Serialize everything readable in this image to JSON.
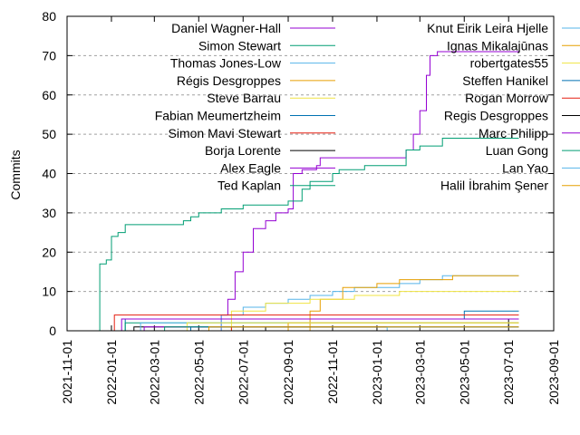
{
  "chart_data": {
    "type": "line",
    "ylabel": "Commits",
    "ylim": [
      0,
      80
    ],
    "yticks": [
      0,
      10,
      20,
      30,
      40,
      50,
      60,
      70,
      80
    ],
    "xlim": [
      "2021-11-01",
      "2023-09-01"
    ],
    "xticks": [
      "2021-11-01",
      "2022-01-01",
      "2022-03-01",
      "2022-05-01",
      "2022-07-01",
      "2022-09-01",
      "2022-11-01",
      "2023-01-01",
      "2023-03-01",
      "2023-05-01",
      "2023-07-01",
      "2023-09-01"
    ],
    "grid": "horizontal dashed",
    "legend_position": "top, two columns",
    "series": [
      {
        "name": "Daniel Wagner-Hall",
        "color": "#9400d3",
        "points": [
          [
            "2022-05-15",
            0
          ],
          [
            "2022-06-01",
            4
          ],
          [
            "2022-06-10",
            8
          ],
          [
            "2022-06-20",
            15
          ],
          [
            "2022-07-01",
            20
          ],
          [
            "2022-07-15",
            26
          ],
          [
            "2022-08-01",
            28
          ],
          [
            "2022-08-15",
            30
          ],
          [
            "2022-09-01",
            31
          ],
          [
            "2022-09-08",
            40
          ],
          [
            "2022-09-20",
            41
          ],
          [
            "2022-10-10",
            42
          ],
          [
            "2022-10-15",
            44
          ],
          [
            "2023-02-01",
            44
          ],
          [
            "2023-02-10",
            46
          ],
          [
            "2023-02-20",
            50
          ],
          [
            "2023-03-01",
            56
          ],
          [
            "2023-03-10",
            65
          ],
          [
            "2023-03-15",
            70
          ],
          [
            "2023-03-25",
            71
          ],
          [
            "2023-07-15",
            71
          ]
        ]
      },
      {
        "name": "Simon Stewart",
        "color": "#009e73",
        "points": [
          [
            "2021-12-15",
            0
          ],
          [
            "2021-12-16",
            17
          ],
          [
            "2021-12-25",
            18
          ],
          [
            "2022-01-01",
            24
          ],
          [
            "2022-01-10",
            25
          ],
          [
            "2022-01-20",
            27
          ],
          [
            "2022-04-01",
            27
          ],
          [
            "2022-04-10",
            28
          ],
          [
            "2022-04-20",
            29
          ],
          [
            "2022-05-01",
            30
          ],
          [
            "2022-06-01",
            31
          ],
          [
            "2022-07-01",
            32
          ],
          [
            "2022-09-01",
            33
          ],
          [
            "2022-09-20",
            36
          ],
          [
            "2022-10-01",
            38
          ],
          [
            "2022-11-01",
            40
          ],
          [
            "2022-11-10",
            41
          ],
          [
            "2022-12-15",
            42
          ],
          [
            "2023-01-25",
            42
          ],
          [
            "2023-02-10",
            46
          ],
          [
            "2023-03-01",
            47
          ],
          [
            "2023-04-01",
            49
          ],
          [
            "2023-07-15",
            49
          ]
        ]
      },
      {
        "name": "Thomas Jones-Low",
        "color": "#56b4e9",
        "points": [
          [
            "2022-03-01",
            0
          ],
          [
            "2022-06-01",
            4
          ],
          [
            "2022-07-01",
            6
          ],
          [
            "2022-08-01",
            7
          ],
          [
            "2022-09-01",
            8
          ],
          [
            "2022-10-01",
            9
          ],
          [
            "2022-11-01",
            10
          ],
          [
            "2022-12-01",
            11
          ],
          [
            "2023-02-01",
            12
          ],
          [
            "2023-03-01",
            13
          ],
          [
            "2023-04-01",
            14
          ],
          [
            "2023-07-15",
            14
          ]
        ]
      },
      {
        "name": "Régis Desgroppes",
        "color": "#e69f00",
        "points": [
          [
            "2022-09-01",
            0
          ],
          [
            "2022-10-01",
            5
          ],
          [
            "2022-10-15",
            8
          ],
          [
            "2022-11-15",
            11
          ],
          [
            "2023-01-01",
            12
          ],
          [
            "2023-02-01",
            13
          ],
          [
            "2023-04-15",
            14
          ],
          [
            "2023-07-15",
            14
          ]
        ]
      },
      {
        "name": "Steve Barrau",
        "color": "#f0e442",
        "points": [
          [
            "2022-03-01",
            0
          ],
          [
            "2022-06-15",
            5
          ],
          [
            "2022-08-01",
            7
          ],
          [
            "2022-10-01",
            8
          ],
          [
            "2022-12-01",
            9
          ],
          [
            "2023-02-01",
            10
          ],
          [
            "2023-07-15",
            10
          ]
        ]
      },
      {
        "name": "Fabian Meumertzheim",
        "color": "#0072b2",
        "points": [
          [
            "2022-01-01",
            0
          ],
          [
            "2022-01-20",
            3
          ],
          [
            "2023-04-15",
            3
          ],
          [
            "2023-05-01",
            5
          ],
          [
            "2023-07-15",
            5
          ]
        ]
      },
      {
        "name": "Simon Mavi Stewart",
        "color": "#e51e10",
        "points": [
          [
            "2022-01-01",
            0
          ],
          [
            "2022-01-05",
            4
          ],
          [
            "2023-07-15",
            4
          ]
        ]
      },
      {
        "name": "Borja Lorente",
        "color": "#000000",
        "points": [
          [
            "2022-01-15",
            0
          ],
          [
            "2022-02-01",
            1
          ],
          [
            "2023-06-15",
            1
          ],
          [
            "2023-07-01",
            3
          ],
          [
            "2023-07-15",
            3
          ]
        ]
      },
      {
        "name": "Alex Eagle",
        "color": "#9400d3",
        "points": [
          [
            "2022-01-10",
            0
          ],
          [
            "2022-01-15",
            3
          ],
          [
            "2023-07-15",
            3
          ]
        ]
      },
      {
        "name": "Ted Kaplan",
        "color": "#009e73",
        "points": [
          [
            "2022-01-01",
            0
          ],
          [
            "2022-01-20",
            2
          ],
          [
            "2023-07-15",
            2
          ]
        ]
      },
      {
        "name": "Knut Eirik Leira Hjelle",
        "color": "#56b4e9",
        "points": [
          [
            "2022-02-01",
            0
          ],
          [
            "2022-02-10",
            2
          ],
          [
            "2023-07-15",
            2
          ]
        ]
      },
      {
        "name": "Ignas Mikalajūnas",
        "color": "#e69f00",
        "points": [
          [
            "2022-08-15",
            0
          ],
          [
            "2022-09-01",
            2
          ],
          [
            "2023-07-15",
            2
          ]
        ]
      },
      {
        "name": "robertgates55",
        "color": "#f0e442",
        "points": [
          [
            "2022-04-01",
            0
          ],
          [
            "2022-04-15",
            2
          ],
          [
            "2023-07-15",
            2
          ]
        ]
      },
      {
        "name": "Steffen Hanikel",
        "color": "#0072b2",
        "points": [
          [
            "2022-04-01",
            0
          ],
          [
            "2022-04-20",
            1
          ],
          [
            "2023-07-15",
            1
          ]
        ]
      },
      {
        "name": "Rogan Morrow",
        "color": "#e51e10",
        "points": [
          [
            "2022-06-01",
            0
          ],
          [
            "2022-06-15",
            1
          ],
          [
            "2023-07-15",
            1
          ]
        ]
      },
      {
        "name": "Regis Desgroppes",
        "color": "#000000",
        "points": [
          [
            "2022-07-01",
            0
          ],
          [
            "2022-08-01",
            1
          ],
          [
            "2023-07-15",
            1
          ]
        ]
      },
      {
        "name": "Marc Philipp",
        "color": "#9400d3",
        "points": [
          [
            "2022-02-01",
            0
          ],
          [
            "2022-02-15",
            1
          ],
          [
            "2023-07-15",
            1
          ]
        ]
      },
      {
        "name": "Luan Gong",
        "color": "#009e73",
        "points": [
          [
            "2022-03-01",
            0
          ],
          [
            "2022-03-15",
            1
          ],
          [
            "2023-07-15",
            1
          ]
        ]
      },
      {
        "name": "Lan Yao",
        "color": "#56b4e9",
        "points": [
          [
            "2023-01-01",
            0
          ],
          [
            "2023-01-15",
            1
          ],
          [
            "2023-07-15",
            1
          ]
        ]
      },
      {
        "name": "Halil İbrahim Şener",
        "color": "#e69f00",
        "points": [
          [
            "2022-05-01",
            0
          ],
          [
            "2022-05-15",
            1
          ],
          [
            "2023-07-15",
            1
          ]
        ]
      }
    ]
  }
}
